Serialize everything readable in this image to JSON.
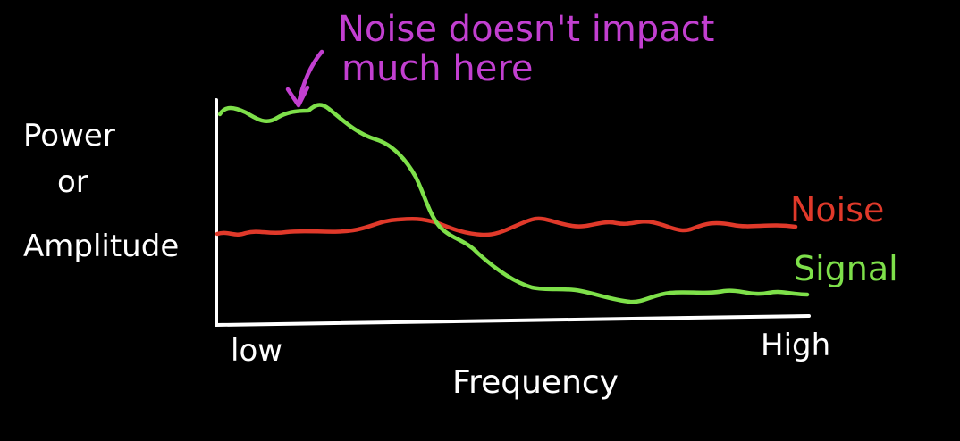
{
  "annotation": {
    "line1": "Noise doesn't impact",
    "line2": "much here"
  },
  "axis": {
    "y_label_line1": "Power",
    "y_label_line2": "or",
    "y_label_line3": "Amplitude",
    "x_label": "Frequency",
    "x_low": "low",
    "x_high": "High"
  },
  "legend": {
    "noise": "Noise",
    "signal": "Signal"
  },
  "colors": {
    "axis": "#ffffff",
    "noise": "#e0392a",
    "signal": "#7ee04a",
    "annotation": "#c23fd0",
    "background": "#000000"
  }
}
